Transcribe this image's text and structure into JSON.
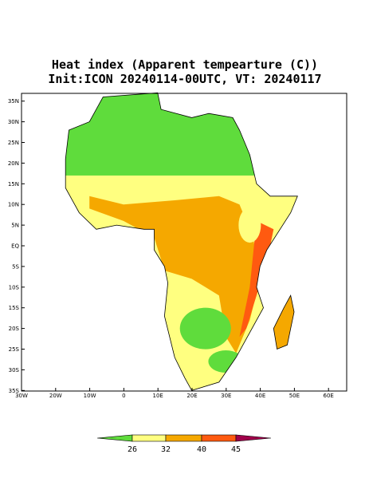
{
  "title": {
    "line1": "Heat index (Apparent tempearture (C))",
    "line2": "Init:ICON 20240114-00UTC, VT: 20240117"
  },
  "map": {
    "x_labels": [
      "30W",
      "20W",
      "10W",
      "0",
      "10E",
      "20E",
      "30E",
      "40E",
      "50E",
      "60E"
    ],
    "y_labels": [
      "35N",
      "30N",
      "25N",
      "20N",
      "15N",
      "10N",
      "5N",
      "EQ",
      "5S",
      "10S",
      "15S",
      "20S",
      "25S",
      "30S",
      "35S"
    ]
  },
  "colorbar": {
    "labels": [
      "26",
      "32",
      "40",
      "45"
    ],
    "colors": [
      "#5fdc3c",
      "#ffff80",
      "#f5a800",
      "#ff5a10",
      "#a0004a"
    ]
  }
}
